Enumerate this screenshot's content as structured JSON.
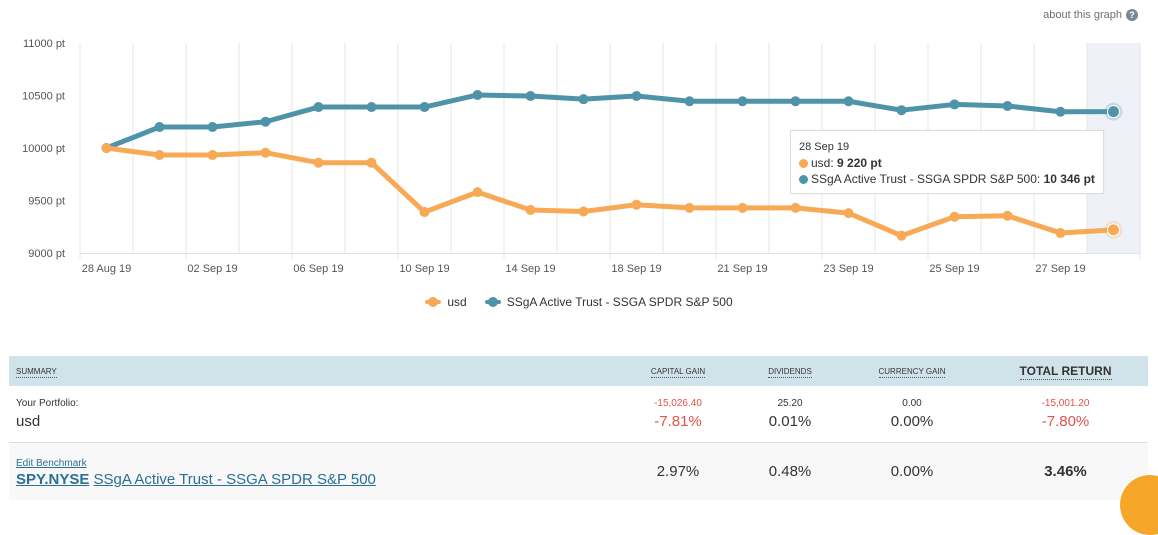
{
  "about_link": "about this graph",
  "colors": {
    "usd": "#f7a955",
    "benchmark": "#4f93a8",
    "highlight_band": "#eef2f8",
    "negative": "#e2514b",
    "table_header": "#d1e3ea"
  },
  "chart_data": {
    "type": "line",
    "categories": [
      "28 Aug 19",
      "",
      "02 Sep 19",
      "",
      "06 Sep 19",
      "",
      "10 Sep 19",
      "",
      "14 Sep 19",
      "",
      "18 Sep 19",
      "",
      "21 Sep 19",
      "",
      "23 Sep 19",
      "",
      "25 Sep 19",
      "",
      "27 Sep 19",
      "28 Sep 19"
    ],
    "x_tick_labels": [
      "28 Aug 19",
      "",
      "02 Sep 19",
      "",
      "06 Sep 19",
      "",
      "10 Sep 19",
      "",
      "14 Sep 19",
      "",
      "18 Sep 19",
      "",
      "21 Sep 19",
      "",
      "23 Sep 19",
      "",
      "25 Sep 19",
      "",
      "27 Sep 19",
      ""
    ],
    "y_ticks": [
      "9000 pt",
      "9500 pt",
      "10000 pt",
      "10500 pt",
      "11000 pt"
    ],
    "ylim": [
      9000,
      11000
    ],
    "grid": "vertical",
    "legend": "bottom-center",
    "series": [
      {
        "name": "usd",
        "values": [
          10000,
          9933,
          9933,
          9955,
          9860,
          9860,
          9390,
          9580,
          9410,
          9395,
          9460,
          9430,
          9430,
          9430,
          9380,
          9165,
          9345,
          9355,
          9190,
          9220
        ]
      },
      {
        "name": "SSgA Active Trust - SSGA SPDR S&P 500",
        "values": [
          10000,
          10200,
          10200,
          10250,
          10390,
          10390,
          10390,
          10505,
          10495,
          10465,
          10495,
          10445,
          10445,
          10445,
          10445,
          10360,
          10415,
          10400,
          10345,
          10346
        ]
      }
    ],
    "tooltip": {
      "date": "28 Sep 19",
      "rows": [
        {
          "label": "usd: ",
          "value": "9 220 pt"
        },
        {
          "label": "SSgA Active Trust - SSGA SPDR S&P 500: ",
          "value": "10 346 pt"
        }
      ]
    }
  },
  "table": {
    "headers": [
      "SUMMARY",
      "CAPITAL GAIN",
      "DIVIDENDS",
      "CURRENCY GAIN",
      "TOTAL RETURN"
    ],
    "portfolio": {
      "label": "Your Portfolio:",
      "name": "usd",
      "capital_gain": "-15,026.40",
      "capital_gain_pct": "-7.81%",
      "dividends": "25.20",
      "dividends_pct": "0.01%",
      "currency_gain": "0.00",
      "currency_gain_pct": "0.00%",
      "total": "-15,001.20",
      "total_pct": "-7.80%"
    },
    "benchmark": {
      "edit_label": "Edit Benchmark",
      "ticker": "SPY.NYSE",
      "name": "SSgA Active Trust - SSGA SPDR S&P 500",
      "capital_gain_pct": "2.97%",
      "dividends_pct": "0.48%",
      "currency_gain_pct": "0.00%",
      "total_pct": "3.46%"
    }
  }
}
